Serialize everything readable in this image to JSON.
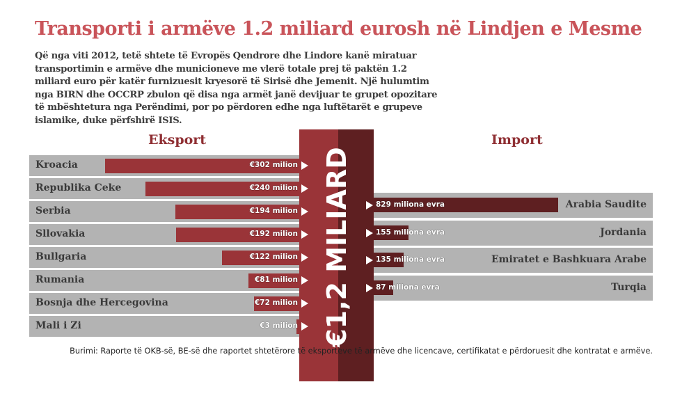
{
  "title": "Transporti i armëve 1.2 miliard eurosh në Lindjen e Mesme",
  "intro": "Që nga viti 2012, tetë shtete të Evropës Qendrore dhe Lindore kanë miratuar transportimin e armëve dhe municioneve me vlerë totale prej të paktën 1.2 miliard euro për katër furnizuesit kryesorë të Sirisë dhe Jemenit. Një hulumtim nga BIRN dhe OCCRP zbulon që disa nga armët janë devijuar te grupet opozitare të mbështetura nga Perëndimi, por po përdoren edhe nga luftëtarët e grupeve islamike, duke përfshirë ISIS.",
  "total": "€1,2 MILIARD",
  "source": "Burimi: Raporte të OKB-së, BE-së dhe raportet shtetërore të eksporteve të armëve dhe licencave, certifikatat e përdoruesit dhe kontratat e armëve.",
  "colors": {
    "title": "#c9545a",
    "export": "#9a3438",
    "import": "#5e1f21",
    "row": "#b3b3b3"
  },
  "chart_data": [
    {
      "type": "bar",
      "title": "Eksport",
      "unit": "million EUR",
      "categories": [
        "Kroacia",
        "Republika Ceke",
        "Serbia",
        "Sllovakia",
        "Bullgaria",
        "Rumania",
        "Bosnja dhe Hercegovina",
        "Mali i Zi"
      ],
      "values": [
        302,
        240,
        194,
        192,
        122,
        81,
        72,
        3
      ],
      "labels": [
        "€302 milion",
        "€240 milion",
        "€194 milion",
        "€192 milion",
        "€122 milion",
        "€81 milion",
        "€72 milion",
        "€3 milion"
      ]
    },
    {
      "type": "bar",
      "title": "Import",
      "unit": "million EUR",
      "categories": [
        "Arabia Saudite",
        "Jordania",
        "Emiratet e Bashkuara Arabe",
        "Turqia"
      ],
      "values": [
        829,
        155,
        135,
        87
      ],
      "labels": [
        "829 miliona evra",
        "155 miliona evra",
        "135 miliona evra",
        "87 miliona evra"
      ]
    }
  ]
}
